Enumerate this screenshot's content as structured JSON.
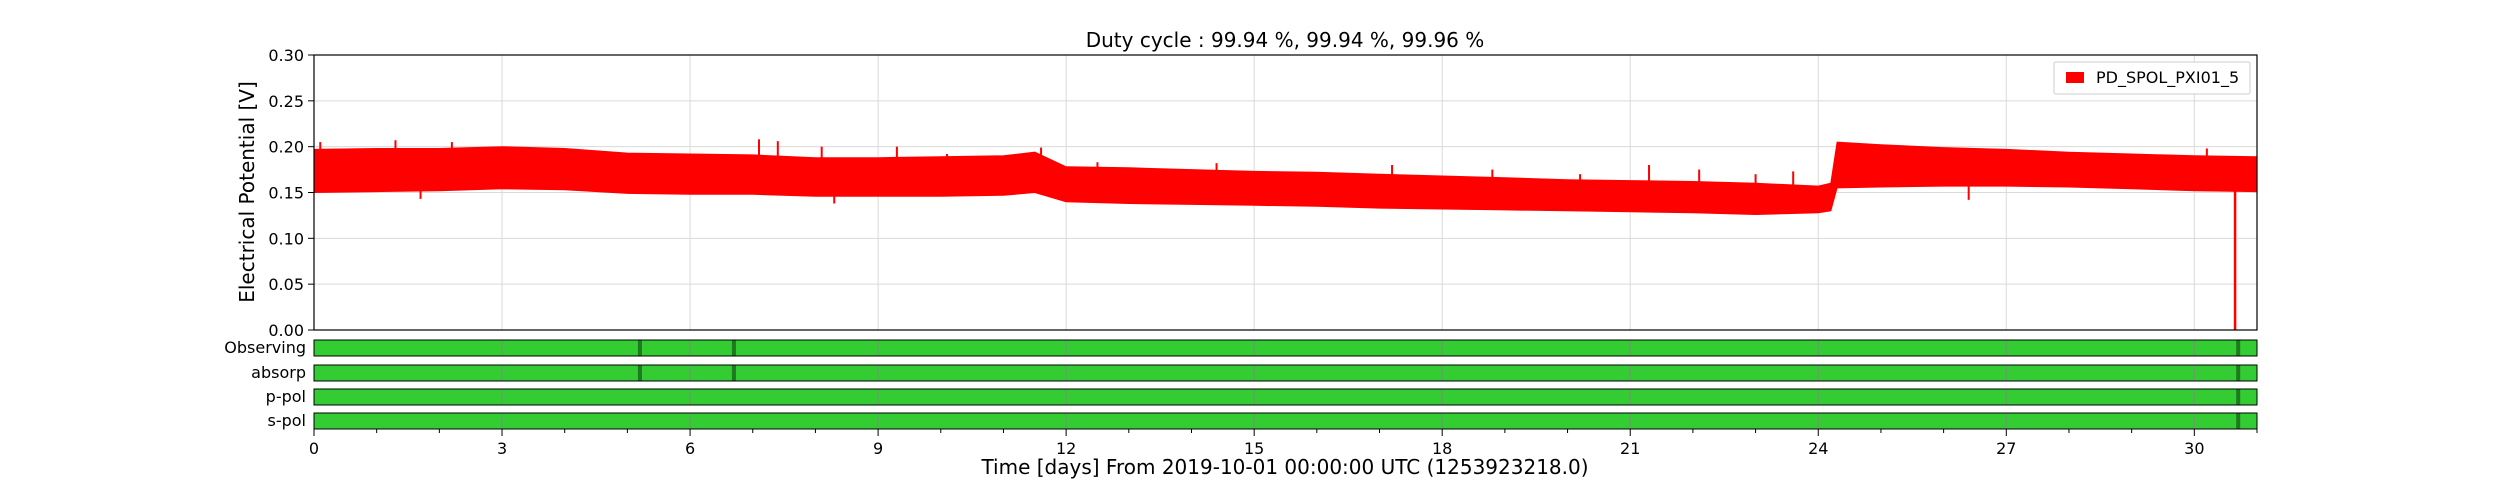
{
  "chart_data": {
    "type": "line",
    "title": "Duty cycle : 99.94 %, 99.94 %, 99.96 %",
    "xlabel": "Time [days] From 2019-10-01 00:00:00 UTC (1253923218.0)",
    "ylabel": "Electrical Potential [V]",
    "xlim": [
      0,
      31
    ],
    "ylim": [
      0,
      0.3
    ],
    "x_ticks": [
      0,
      3,
      6,
      9,
      12,
      15,
      18,
      21,
      24,
      27,
      30
    ],
    "y_ticks": [
      "0.00",
      "0.05",
      "0.10",
      "0.15",
      "0.20",
      "0.25",
      "0.30"
    ],
    "grid": true,
    "legend_position": "top-right",
    "series": [
      {
        "name": "PD_SPOL_PXI01_5",
        "color": "#ff0000",
        "band": {
          "x": [
            0,
            1,
            2,
            3,
            4,
            5,
            6,
            7,
            8,
            9,
            10,
            11,
            11.5,
            12,
            13,
            14,
            15,
            16,
            17,
            18,
            19,
            20,
            21,
            22,
            23,
            24,
            24.2,
            24.3,
            25,
            26,
            27,
            28,
            29,
            30,
            31
          ],
          "low": [
            0.15,
            0.151,
            0.152,
            0.154,
            0.153,
            0.149,
            0.148,
            0.148,
            0.146,
            0.146,
            0.146,
            0.147,
            0.15,
            0.14,
            0.138,
            0.137,
            0.136,
            0.135,
            0.133,
            0.132,
            0.131,
            0.13,
            0.129,
            0.128,
            0.126,
            0.128,
            0.13,
            0.155,
            0.156,
            0.157,
            0.157,
            0.156,
            0.154,
            0.152,
            0.151
          ],
          "high": [
            0.197,
            0.198,
            0.198,
            0.2,
            0.198,
            0.193,
            0.192,
            0.191,
            0.188,
            0.188,
            0.189,
            0.19,
            0.194,
            0.178,
            0.177,
            0.175,
            0.173,
            0.172,
            0.17,
            0.168,
            0.166,
            0.164,
            0.163,
            0.162,
            0.16,
            0.157,
            0.16,
            0.205,
            0.202,
            0.199,
            0.197,
            0.194,
            0.192,
            0.19,
            0.189
          ]
        },
        "spikes": [
          {
            "x": 0.1,
            "y": 0.205
          },
          {
            "x": 1.3,
            "y": 0.207
          },
          {
            "x": 1.7,
            "y": 0.143
          },
          {
            "x": 2.2,
            "y": 0.205
          },
          {
            "x": 7.1,
            "y": 0.208
          },
          {
            "x": 7.4,
            "y": 0.206
          },
          {
            "x": 8.1,
            "y": 0.2
          },
          {
            "x": 8.3,
            "y": 0.138
          },
          {
            "x": 9.3,
            "y": 0.2
          },
          {
            "x": 10.1,
            "y": 0.192
          },
          {
            "x": 11.6,
            "y": 0.199
          },
          {
            "x": 12.5,
            "y": 0.183
          },
          {
            "x": 14.4,
            "y": 0.182
          },
          {
            "x": 17.2,
            "y": 0.18
          },
          {
            "x": 18.8,
            "y": 0.175
          },
          {
            "x": 20.2,
            "y": 0.17
          },
          {
            "x": 21.3,
            "y": 0.18
          },
          {
            "x": 22.1,
            "y": 0.175
          },
          {
            "x": 23.0,
            "y": 0.17
          },
          {
            "x": 23.6,
            "y": 0.173
          },
          {
            "x": 26.4,
            "y": 0.142
          },
          {
            "x": 30.2,
            "y": 0.198
          }
        ],
        "dropout": {
          "x": 30.65,
          "y": 0.0
        }
      }
    ],
    "segments": {
      "labels": [
        "Observing",
        "absorp",
        "p-pol",
        "s-pol"
      ],
      "color": "#33cc33",
      "gap_color": "#1f7a1f",
      "gaps": [
        [
          5.2,
          6.7,
          30.7
        ],
        [
          5.2,
          6.7,
          30.7
        ],
        [
          30.7
        ],
        [
          30.7
        ]
      ]
    }
  }
}
